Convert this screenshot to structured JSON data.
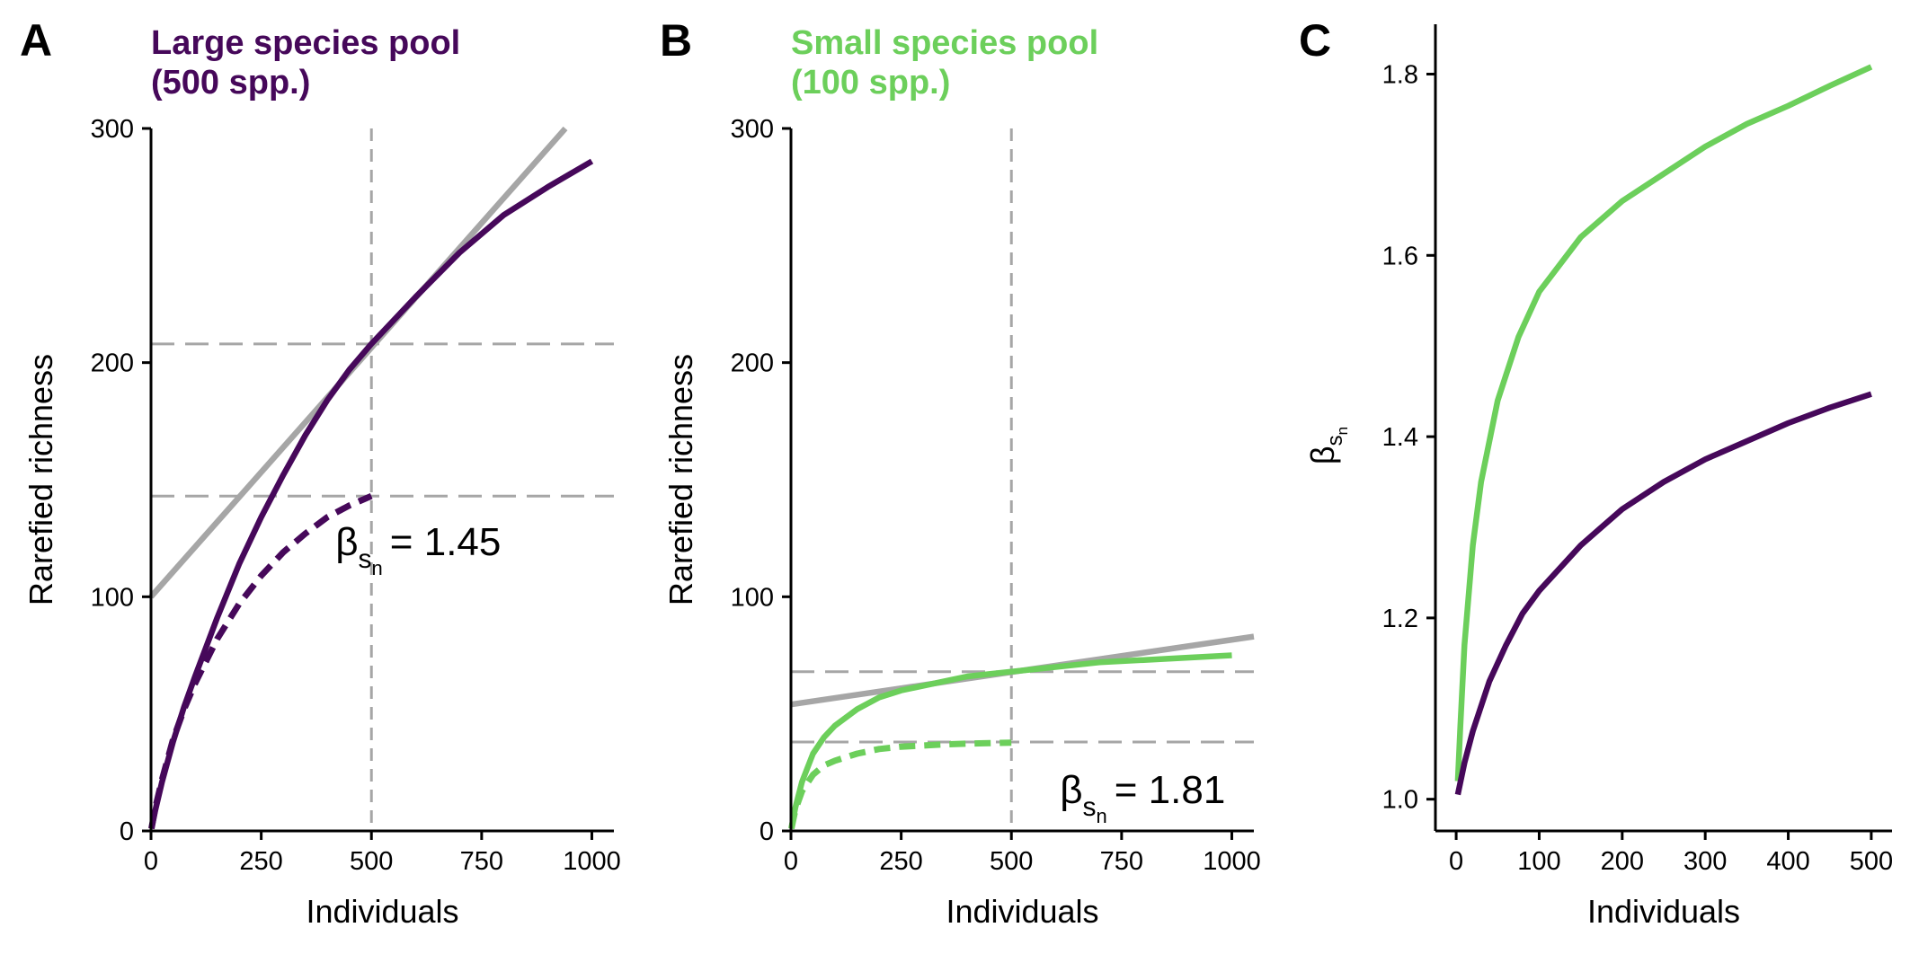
{
  "colors": {
    "large_pool": "#46085a",
    "small_pool": "#6ccf5b",
    "reference": "#a6a6a6",
    "axis": "#000000"
  },
  "chart_data": [
    {
      "panel": "A",
      "type": "line",
      "title": "Large species pool\n(500 spp.)",
      "title_lines": [
        "Large species pool",
        "(500 spp.)"
      ],
      "title_color": "#46085a",
      "xlabel": "Individuals",
      "ylabel": "Rarefied richness",
      "xlim": [
        0,
        1050
      ],
      "ylim": [
        0,
        300
      ],
      "xticks": [
        0,
        250,
        500,
        750,
        1000
      ],
      "yticks": [
        0,
        100,
        200,
        300
      ],
      "series": [
        {
          "style": "solid",
          "color": "#46085a",
          "x": [
            1,
            10,
            25,
            50,
            75,
            100,
            150,
            200,
            250,
            300,
            350,
            400,
            450,
            500,
            600,
            700,
            800,
            900,
            1000
          ],
          "y": [
            1,
            9,
            21,
            38,
            53,
            66,
            91,
            114,
            134,
            152,
            169,
            184,
            197,
            208,
            228,
            247,
            263,
            275,
            286
          ]
        },
        {
          "style": "dashed",
          "color": "#46085a",
          "x": [
            1,
            10,
            25,
            50,
            75,
            100,
            150,
            200,
            250,
            300,
            350,
            400,
            450,
            500
          ],
          "y": [
            1,
            10,
            22,
            39,
            52,
            63,
            82,
            97,
            109,
            119,
            127,
            134,
            139,
            143
          ]
        },
        {
          "style": "solid",
          "color": "#a6a6a6",
          "x": [
            0,
            940
          ],
          "y": [
            100,
            300
          ]
        }
      ],
      "reference_lines": {
        "vertical_x": 500,
        "horizontal_y": [
          208,
          143
        ]
      },
      "annotation": {
        "beta": "β",
        "sub": "s",
        "subsub": "n",
        "eq": "= 1.45",
        "x": 500,
        "y": 124
      }
    },
    {
      "panel": "B",
      "type": "line",
      "title": "Small species pool\n(100 spp.)",
      "title_lines": [
        "Small species pool",
        "(100 spp.)"
      ],
      "title_color": "#6ccf5b",
      "xlabel": "Individuals",
      "ylabel": "Rarefied richness",
      "xlim": [
        0,
        1050
      ],
      "ylim": [
        0,
        300
      ],
      "xticks": [
        0,
        250,
        500,
        750,
        1000
      ],
      "yticks": [
        0,
        100,
        200,
        300
      ],
      "series": [
        {
          "style": "solid",
          "color": "#6ccf5b",
          "x": [
            1,
            10,
            25,
            50,
            75,
            100,
            150,
            200,
            250,
            300,
            350,
            400,
            500,
            600,
            700,
            800,
            900,
            1000
          ],
          "y": [
            1,
            10,
            21,
            33,
            40,
            45,
            52,
            57,
            60,
            62,
            64,
            66,
            68,
            70,
            72,
            73,
            74,
            75
          ]
        },
        {
          "style": "dashed",
          "color": "#6ccf5b",
          "x": [
            1,
            10,
            25,
            50,
            75,
            100,
            150,
            200,
            250,
            300,
            350,
            400,
            450,
            500
          ],
          "y": [
            1,
            9,
            17,
            24,
            28,
            30,
            33,
            35,
            36,
            36.5,
            37,
            37.3,
            37.5,
            37.7
          ]
        },
        {
          "style": "solid",
          "color": "#a6a6a6",
          "x": [
            0,
            1050
          ],
          "y": [
            54,
            83
          ]
        }
      ],
      "reference_lines": {
        "vertical_x": 500,
        "horizontal_y": [
          68,
          38
        ]
      },
      "annotation": {
        "beta": "β",
        "sub": "s",
        "subsub": "n",
        "eq": "= 1.81",
        "x": 610,
        "y": 18
      }
    },
    {
      "panel": "C",
      "type": "line",
      "title": "",
      "xlabel": "Individuals",
      "ylabel": "β",
      "ylabel_sub": "s",
      "ylabel_subsub": "n",
      "xlim": [
        -25,
        525
      ],
      "ylim": [
        0.965,
        1.855
      ],
      "xticks": [
        0,
        100,
        200,
        300,
        400,
        500
      ],
      "yticks": [
        1.0,
        1.2,
        1.4,
        1.6,
        1.8
      ],
      "ytick_labels": [
        "1.0",
        "1.2",
        "1.4",
        "1.6",
        "1.8"
      ],
      "series": [
        {
          "style": "solid",
          "color": "#6ccf5b",
          "x": [
            2,
            5,
            10,
            20,
            30,
            50,
            75,
            100,
            150,
            200,
            250,
            300,
            350,
            400,
            450,
            500
          ],
          "y": [
            1.02,
            1.08,
            1.17,
            1.28,
            1.35,
            1.44,
            1.51,
            1.56,
            1.62,
            1.66,
            1.69,
            1.72,
            1.745,
            1.765,
            1.787,
            1.808
          ]
        },
        {
          "style": "solid",
          "color": "#46085a",
          "x": [
            2,
            10,
            20,
            40,
            60,
            80,
            100,
            150,
            200,
            250,
            300,
            350,
            400,
            450,
            500
          ],
          "y": [
            1.005,
            1.04,
            1.075,
            1.13,
            1.17,
            1.205,
            1.23,
            1.28,
            1.32,
            1.35,
            1.375,
            1.395,
            1.415,
            1.432,
            1.447
          ]
        }
      ]
    }
  ]
}
